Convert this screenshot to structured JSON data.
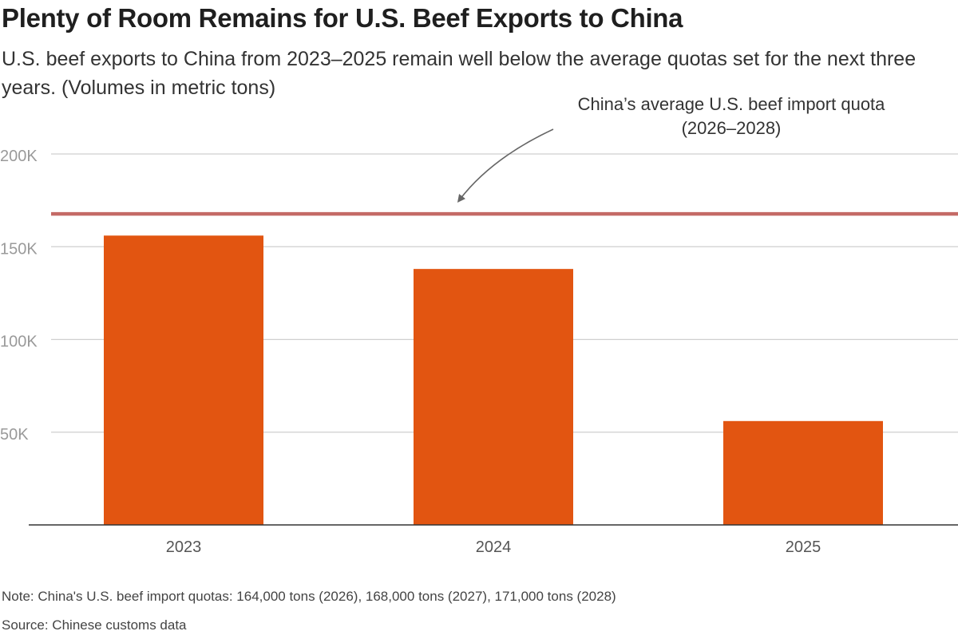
{
  "title": "Plenty of Room Remains for U.S. Beef Exports to China",
  "subtitle": "U.S. beef exports to China from 2023–2025 remain well below the average quotas set for the next three years. (Volumes in metric tons)",
  "annotation": {
    "line1": "China’s average U.S. beef import quota",
    "line2": "(2026–2028)"
  },
  "note": "Note: China's U.S. beef import quotas: 164,000 tons (2026), 168,000 tons (2027), 171,000 tons (2028)",
  "source": "Source: Chinese customs data",
  "colors": {
    "bar": "#e25511",
    "quota_line": "#c46a66",
    "grid": "#cfcfcf",
    "axis": "#333333",
    "tick_text": "#9a9a9a",
    "category_text": "#555555"
  },
  "chart_data": {
    "type": "bar",
    "categories": [
      "2023",
      "2024",
      "2025"
    ],
    "values": [
      156000,
      138000,
      56000
    ],
    "reference_line": 167667,
    "yticks": [
      50000,
      100000,
      150000,
      200000
    ],
    "ytick_labels": [
      "50K",
      "100K",
      "150K",
      "200K"
    ],
    "ylim": [
      0,
      200000
    ],
    "grid": true,
    "xlabel": "",
    "ylabel": ""
  }
}
